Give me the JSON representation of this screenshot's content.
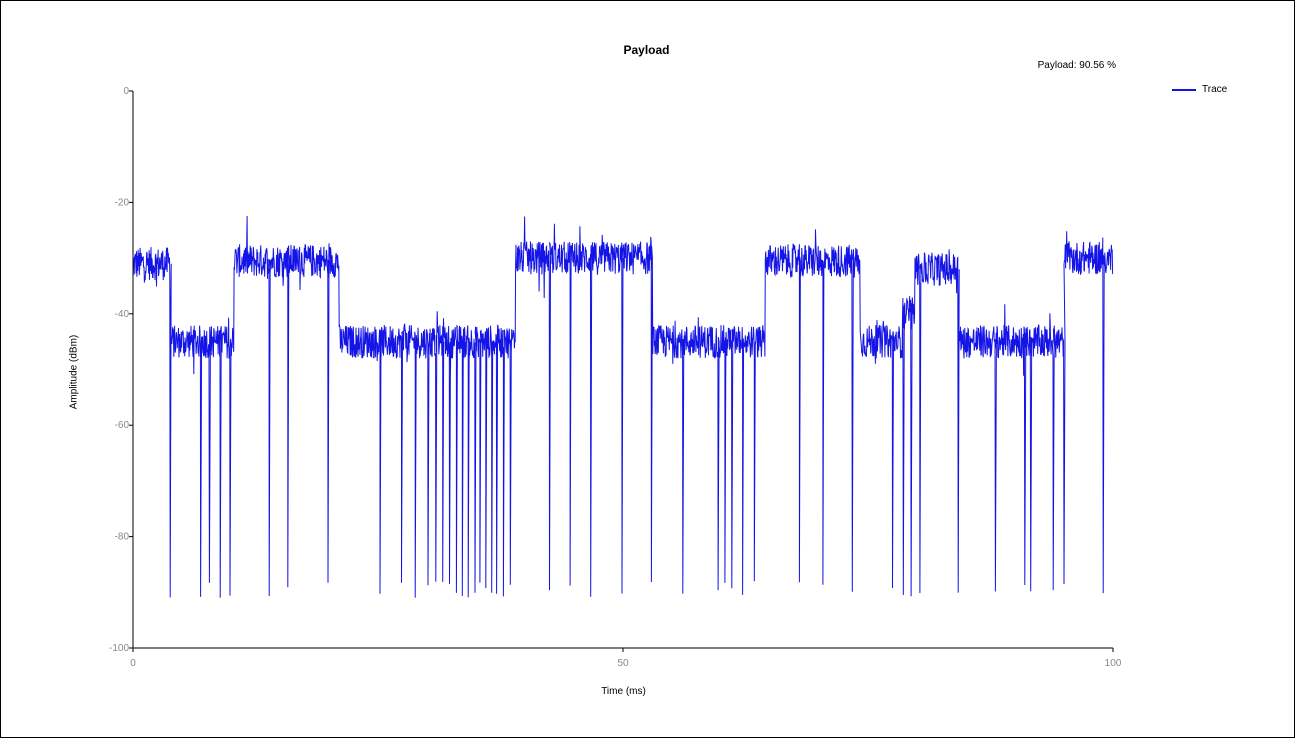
{
  "chart_data": {
    "type": "line",
    "title": "Payload",
    "annotation": "Payload: 90.56 %",
    "xlabel": "Time (ms)",
    "ylabel": "Amplitude (dBm)",
    "xlim": [
      0,
      100
    ],
    "ylim": [
      -100,
      0
    ],
    "xticks": [
      "0",
      "50",
      "100"
    ],
    "yticks": [
      "0",
      "-20",
      "-40",
      "-60",
      "-80",
      "-100"
    ],
    "legend_position": "top-right",
    "grid": false,
    "colors": {
      "trace": "#1414e6",
      "axis": "#000000",
      "tick_label": "#888888"
    },
    "series": [
      {
        "name": "Trace",
        "segments": [
          {
            "x": [
              0,
              3.8
            ],
            "level": -31
          },
          {
            "x": [
              3.8,
              10.3
            ],
            "level": -45
          },
          {
            "x": [
              10.3,
              21
            ],
            "level": -30.5
          },
          {
            "x": [
              21,
              39
            ],
            "level": -45
          },
          {
            "x": [
              39,
              53
            ],
            "level": -30
          },
          {
            "x": [
              53,
              64.5
            ],
            "level": -45
          },
          {
            "x": [
              64.5,
              74.2
            ],
            "level": -30.5
          },
          {
            "x": [
              74.2,
              78.5
            ],
            "level": -45
          },
          {
            "x": [
              78.5,
              79.8
            ],
            "level": -40
          },
          {
            "x": [
              79.8,
              84.2
            ],
            "level": -32
          },
          {
            "x": [
              84.2,
              95
            ],
            "level": -45
          },
          {
            "x": [
              95,
              100
            ],
            "level": -30
          }
        ],
        "dropouts": [
          3.8,
          6.9,
          7.8,
          8.9,
          9.9,
          13.9,
          15.8,
          19.9,
          25.2,
          27.4,
          28.8,
          30.1,
          30.9,
          31.6,
          32.3,
          33.0,
          33.6,
          34.2,
          34.9,
          35.4,
          36.0,
          36.6,
          37.1,
          37.8,
          38.5,
          42.5,
          44.6,
          46.7,
          49.9,
          52.9,
          56.1,
          59.7,
          60.4,
          61.1,
          62.2,
          63.4,
          68.0,
          70.4,
          73.4,
          77.5,
          78.6,
          79.4,
          80.3,
          84.2,
          88.0,
          91.0,
          91.6,
          93.9,
          95.0,
          99.0
        ],
        "dropout_min": -90,
        "noise_amplitude": 3
      }
    ]
  }
}
